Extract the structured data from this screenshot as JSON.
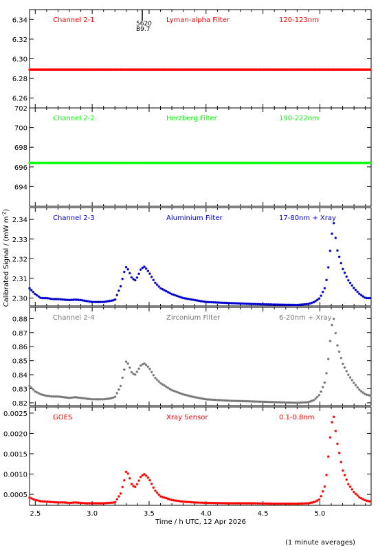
{
  "figure": {
    "ylabel": "Calibrated Signal / (mW m",
    "ylabel_sup": "-2",
    "ylabel_end": ")",
    "xlabel": "Time / h UTC, 12 Apr 2026",
    "footnote": "(1 minute averages)",
    "marker_texts": [
      "5620",
      "B9.7"
    ]
  },
  "chart_data": [
    {
      "type": "scatter",
      "header": {
        "left": "Channel 2-1",
        "center": "Lyman-alpha Filter",
        "right": "120-123nm"
      },
      "color": "#ff0000",
      "xlim": [
        2.45,
        5.45
      ],
      "ylim": [
        6.25,
        6.35
      ],
      "yticks": [
        6.26,
        6.28,
        6.3,
        6.32,
        6.34
      ],
      "ytick_labels": [
        "6.26",
        "6.28",
        "6.30",
        "6.32",
        "6.34"
      ],
      "series": [
        {
          "x": [
            2.45,
            5.45
          ],
          "y": [
            6.289,
            6.289
          ],
          "shape": "constant"
        }
      ]
    },
    {
      "type": "scatter",
      "header": {
        "left": "Channel 2-2",
        "center": "Herzberg Filter",
        "right": "190-222nm"
      },
      "color": "#00ff00",
      "xlim": [
        2.45,
        5.45
      ],
      "ylim": [
        692,
        702
      ],
      "yticks": [
        694,
        696,
        698,
        700,
        702
      ],
      "ytick_labels": [
        "694",
        "696",
        "698",
        "700",
        "702"
      ],
      "series": [
        {
          "x": [
            2.45,
            5.45
          ],
          "y": [
            696.4,
            696.4
          ],
          "shape": "constant"
        }
      ]
    },
    {
      "type": "scatter",
      "header": {
        "left": "Channel 2-3",
        "center": "Aluminium Filter",
        "right": "17-80nm + Xray"
      },
      "color": "#0000cc",
      "xlim": [
        2.45,
        5.45
      ],
      "ylim": [
        2.296,
        2.346
      ],
      "yticks": [
        2.3,
        2.31,
        2.32,
        2.33,
        2.34
      ],
      "ytick_labels": [
        "2.30",
        "2.31",
        "2.32",
        "2.33",
        "2.34"
      ],
      "series": [
        {
          "x": [
            2.45,
            2.5,
            2.55,
            2.6,
            2.65,
            2.7,
            2.75,
            2.8,
            2.85,
            2.9,
            2.95,
            3.0,
            3.05,
            3.1,
            3.15,
            3.2,
            3.25,
            3.28,
            3.3,
            3.32,
            3.35,
            3.38,
            3.4,
            3.43,
            3.46,
            3.5,
            3.55,
            3.6,
            3.7,
            3.8,
            3.9,
            4.0,
            4.2,
            4.4,
            4.6,
            4.8,
            4.9,
            4.95,
            5.0,
            5.05,
            5.08,
            5.1,
            5.12,
            5.15,
            5.2,
            5.25,
            5.3,
            5.35,
            5.4,
            5.45
          ],
          "y": [
            2.305,
            2.302,
            2.3,
            2.3,
            2.2995,
            2.2995,
            2.2992,
            2.299,
            2.2992,
            2.299,
            2.2985,
            2.298,
            2.298,
            2.298,
            2.2985,
            2.299,
            2.306,
            2.313,
            2.316,
            2.314,
            2.31,
            2.309,
            2.311,
            2.315,
            2.316,
            2.313,
            2.308,
            2.305,
            2.302,
            2.3,
            2.299,
            2.298,
            2.2975,
            2.297,
            2.2967,
            2.2965,
            2.297,
            2.298,
            2.3,
            2.306,
            2.318,
            2.33,
            2.339,
            2.325,
            2.315,
            2.309,
            2.305,
            2.302,
            2.3,
            2.3
          ]
        }
      ]
    },
    {
      "type": "scatter",
      "header": {
        "left": "Channel 2-4",
        "center": "Zirconium Filter",
        "right": "6-20nm + Xray"
      },
      "color": "#777777",
      "xlim": [
        2.45,
        5.45
      ],
      "ylim": [
        0.818,
        0.888
      ],
      "yticks": [
        0.82,
        0.83,
        0.84,
        0.85,
        0.86,
        0.87,
        0.88
      ],
      "ytick_labels": [
        "0.82",
        "0.83",
        "0.84",
        "0.85",
        "0.86",
        "0.87",
        "0.88"
      ],
      "series": [
        {
          "x": [
            2.45,
            2.5,
            2.55,
            2.6,
            2.65,
            2.7,
            2.75,
            2.8,
            2.85,
            2.9,
            2.95,
            3.0,
            3.05,
            3.1,
            3.15,
            3.2,
            3.25,
            3.28,
            3.3,
            3.32,
            3.35,
            3.38,
            3.4,
            3.43,
            3.46,
            3.5,
            3.55,
            3.6,
            3.7,
            3.8,
            3.9,
            4.0,
            4.2,
            4.4,
            4.6,
            4.8,
            4.9,
            4.95,
            5.0,
            5.05,
            5.08,
            5.1,
            5.12,
            5.15,
            5.2,
            5.25,
            5.3,
            5.35,
            5.4,
            5.45
          ],
          "y": [
            0.832,
            0.828,
            0.826,
            0.825,
            0.8245,
            0.8245,
            0.824,
            0.8235,
            0.824,
            0.8235,
            0.823,
            0.8225,
            0.8225,
            0.8225,
            0.823,
            0.824,
            0.832,
            0.843,
            0.85,
            0.847,
            0.841,
            0.84,
            0.843,
            0.847,
            0.848,
            0.845,
            0.838,
            0.834,
            0.829,
            0.826,
            0.824,
            0.8225,
            0.8215,
            0.821,
            0.8205,
            0.82,
            0.8205,
            0.822,
            0.826,
            0.836,
            0.855,
            0.873,
            0.881,
            0.862,
            0.848,
            0.84,
            0.834,
            0.829,
            0.826,
            0.825
          ]
        }
      ]
    },
    {
      "type": "scatter",
      "header": {
        "left": "GOES",
        "center": "Xray Sensor",
        "right": "0.1-0.8nm"
      },
      "color": "#ff0000",
      "xlim": [
        2.45,
        5.45
      ],
      "ylim": [
        0.00023,
        0.00265
      ],
      "yticks": [
        0.0005,
        0.001,
        0.0015,
        0.002,
        0.0025
      ],
      "ytick_labels": [
        "0.0005",
        "0.0010",
        "0.0015",
        "0.0020",
        "0.0025"
      ],
      "series": [
        {
          "x": [
            2.45,
            2.5,
            2.55,
            2.6,
            2.65,
            2.7,
            2.75,
            2.8,
            2.85,
            2.9,
            2.95,
            3.0,
            3.05,
            3.1,
            3.15,
            3.2,
            3.25,
            3.28,
            3.3,
            3.32,
            3.35,
            3.38,
            3.4,
            3.43,
            3.46,
            3.5,
            3.55,
            3.6,
            3.7,
            3.8,
            3.9,
            4.0,
            4.2,
            4.4,
            4.6,
            4.8,
            4.9,
            4.95,
            5.0,
            5.05,
            5.08,
            5.1,
            5.12,
            5.15,
            5.2,
            5.25,
            5.3,
            5.35,
            5.4,
            5.45
          ],
          "y": [
            0.00042,
            0.00036,
            0.00033,
            0.00032,
            0.00031,
            0.0003,
            0.0003,
            0.00029,
            0.0003,
            0.00029,
            0.00028,
            0.00028,
            0.00028,
            0.00028,
            0.00029,
            0.0003,
            0.00052,
            0.00082,
            0.00108,
            0.00098,
            0.00072,
            0.00068,
            0.00078,
            0.00095,
            0.001,
            0.00088,
            0.0006,
            0.00045,
            0.00036,
            0.00032,
            0.0003,
            0.00029,
            0.00028,
            0.00028,
            0.00027,
            0.00027,
            0.00028,
            0.00031,
            0.00038,
            0.00075,
            0.0016,
            0.0022,
            0.00245,
            0.0018,
            0.0011,
            0.00075,
            0.00055,
            0.00042,
            0.00035,
            0.00032
          ]
        }
      ]
    }
  ],
  "x_axis": {
    "ticks": [
      2.5,
      3.0,
      3.5,
      4.0,
      4.5,
      5.0
    ],
    "tick_labels": [
      "2.5",
      "3.0",
      "3.5",
      "4.0",
      "4.5",
      "5.0"
    ]
  }
}
